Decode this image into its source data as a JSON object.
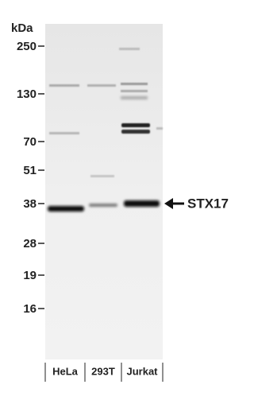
{
  "unit_label": "kDa",
  "markers": [
    "250",
    "130",
    "70",
    "51",
    "38",
    "28",
    "19",
    "16"
  ],
  "lanes": [
    "HeLa",
    "293T",
    "Jurkat"
  ],
  "target": "STX17"
}
